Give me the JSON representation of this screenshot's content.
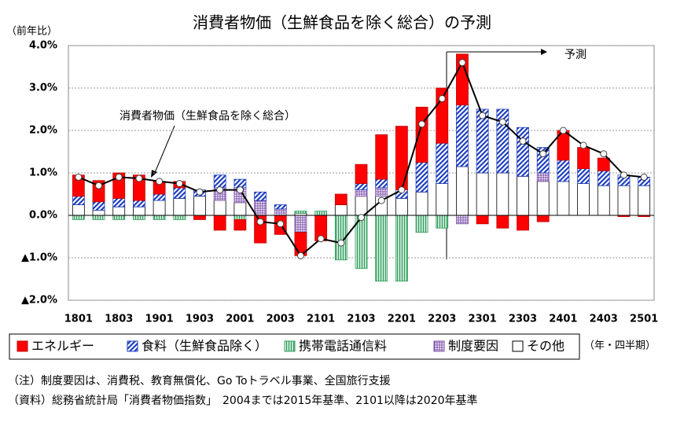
{
  "chart_data": {
    "type": "bar",
    "title": "消費者物価（生鮮食品を除く総合）の予測",
    "y_label": "（前年比）",
    "x_label": "（年・四半期）",
    "forecast_label": "予測",
    "categories": [
      "1801",
      null,
      "1803",
      null,
      "1901",
      null,
      "1903",
      null,
      "2001",
      null,
      "2003",
      null,
      "2101",
      null,
      "2103",
      null,
      "2201",
      null,
      "2203",
      null,
      "2301",
      null,
      "2303",
      null,
      "2401",
      null,
      "2403",
      null,
      "2501"
    ],
    "series": [
      {
        "name": "エネルギー",
        "color": "#ff0000",
        "values": [
          0.5,
          0.5,
          0.6,
          0.6,
          0.3,
          0.15,
          -0.1,
          -0.35,
          -0.25,
          -0.65,
          -0.45,
          -0.55,
          -0.6,
          0.25,
          0.45,
          1.05,
          1.5,
          1.3,
          1.3,
          1.2,
          -0.2,
          -0.3,
          -0.35,
          -0.15,
          0.7,
          0.5,
          0.3,
          -0.03,
          -0.03
        ]
      },
      {
        "name": "食料（生鮮食品除く）",
        "color": "#1f3fbf",
        "values": [
          0.2,
          0.2,
          0.2,
          0.15,
          0.15,
          0.25,
          0.15,
          0.3,
          0.2,
          0.2,
          0.1,
          0,
          0,
          0,
          0.15,
          0.2,
          0.2,
          0.7,
          0.95,
          1.45,
          1.5,
          1.5,
          1.15,
          0.6,
          0.5,
          0.35,
          0.35,
          0.25,
          0.2
        ]
      },
      {
        "name": "携帯電話通信料",
        "color": "#2e9e5b",
        "values": [
          -0.1,
          -0.1,
          -0.1,
          -0.1,
          -0.1,
          -0.1,
          0,
          0,
          -0.1,
          0,
          0,
          0.05,
          0.1,
          -1.05,
          -1.25,
          -1.55,
          -1.55,
          -0.4,
          -0.3,
          0,
          0,
          0,
          0,
          0,
          0,
          0,
          0,
          0,
          0
        ]
      },
      {
        "name": "制度要因",
        "color": "#7b4fa8",
        "values": [
          0,
          0,
          0,
          0,
          0,
          0,
          0,
          0.3,
          0.35,
          0.35,
          0.15,
          -0.4,
          0,
          0,
          0.15,
          0.2,
          0,
          0,
          0,
          -0.2,
          0,
          0,
          0,
          0.2,
          0,
          0,
          0,
          0,
          0
        ]
      },
      {
        "name": "その他",
        "color": "#ffffff",
        "values": [
          0.25,
          0.12,
          0.2,
          0.2,
          0.35,
          0.4,
          0.45,
          0.35,
          0.3,
          0,
          0,
          0.05,
          0,
          0.25,
          0.45,
          0.45,
          0.4,
          0.55,
          0.75,
          1.15,
          1.0,
          1.0,
          0.92,
          0.8,
          0.8,
          0.75,
          0.7,
          0.7,
          0.7
        ]
      }
    ],
    "line": {
      "name": "消費者物価（生鮮食品を除く総合）",
      "color": "#000000",
      "values": [
        0.9,
        0.7,
        0.9,
        0.87,
        0.8,
        0.75,
        0.55,
        0.6,
        0.6,
        -0.15,
        -0.2,
        -0.95,
        -0.55,
        -0.65,
        -0.05,
        0.35,
        0.6,
        2.15,
        2.75,
        3.6,
        2.35,
        2.2,
        1.75,
        1.45,
        2.0,
        1.65,
        1.45,
        0.95,
        0.9
      ]
    },
    "ylim": [
      -2.0,
      4.0
    ],
    "yticks": [
      {
        "value": -2.0,
        "label": "▲2.0%"
      },
      {
        "value": -1.0,
        "label": "▲1.0%"
      },
      {
        "value": 0,
        "label": "0.0%"
      },
      {
        "value": 1.0,
        "label": "1.0%"
      },
      {
        "value": 2.0,
        "label": "2.0%"
      },
      {
        "value": 3.0,
        "label": "3.0%"
      },
      {
        "value": 4.0,
        "label": "4.0%"
      }
    ],
    "grid": true,
    "notes": [
      "（注）制度要因は、消費税、教育無償化、Go Toトラベル事業、全国旅行支援",
      "（資料）総務省統計局「消費者物価指数」　2004までは2015年基準、2101以降は2020年基準"
    ]
  }
}
